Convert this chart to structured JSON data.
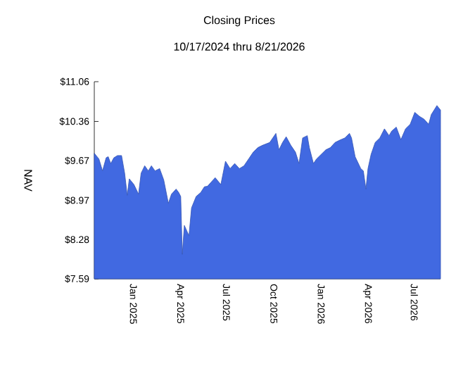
{
  "chart_data": {
    "type": "area",
    "title": "Closing Prices",
    "subtitle": "10/17/2024 thru 8/21/2026",
    "ylabel": "NAV",
    "x": [
      "2024-10-17",
      "2024-10-26",
      "2024-11-02",
      "2024-11-09",
      "2024-11-13",
      "2024-11-18",
      "2024-11-24",
      "2024-12-01",
      "2024-12-09",
      "2024-12-15",
      "2024-12-20",
      "2024-12-24",
      "2025-01-02",
      "2025-01-11",
      "2025-01-16",
      "2025-01-23",
      "2025-01-30",
      "2025-02-05",
      "2025-02-12",
      "2025-02-21",
      "2025-03-01",
      "2025-03-10",
      "2025-03-16",
      "2025-03-25",
      "2025-03-30",
      "2025-04-03",
      "2025-04-06",
      "2025-04-10",
      "2025-04-15",
      "2025-04-19",
      "2025-04-24",
      "2025-05-03",
      "2025-05-12",
      "2025-05-19",
      "2025-05-25",
      "2025-06-01",
      "2025-06-09",
      "2025-06-20",
      "2025-06-29",
      "2025-07-08",
      "2025-07-17",
      "2025-07-26",
      "2025-08-04",
      "2025-08-13",
      "2025-08-22",
      "2025-08-31",
      "2025-09-09",
      "2025-09-23",
      "2025-10-05",
      "2025-10-11",
      "2025-10-18",
      "2025-10-25",
      "2025-11-03",
      "2025-11-12",
      "2025-11-19",
      "2025-11-26",
      "2025-12-05",
      "2025-12-09",
      "2025-12-17",
      "2025-12-23",
      "2026-01-01",
      "2026-01-10",
      "2026-01-19",
      "2026-01-28",
      "2026-02-06",
      "2026-02-16",
      "2026-02-25",
      "2026-03-01",
      "2026-03-08",
      "2026-03-19",
      "2026-03-24",
      "2026-03-29",
      "2026-04-02",
      "2026-04-08",
      "2026-04-16",
      "2026-04-25",
      "2026-05-04",
      "2026-05-13",
      "2026-05-18",
      "2026-05-27",
      "2026-06-05",
      "2026-06-14",
      "2026-06-23",
      "2026-07-02",
      "2026-07-11",
      "2026-07-20",
      "2026-07-29",
      "2026-08-03",
      "2026-08-14",
      "2026-08-21"
    ],
    "series": [
      {
        "color": "#4169e1",
        "values": [
          9.8,
          9.7,
          9.49,
          9.72,
          9.74,
          9.62,
          9.72,
          9.76,
          9.76,
          9.45,
          9.06,
          9.35,
          9.25,
          9.08,
          9.45,
          9.58,
          9.49,
          9.58,
          9.49,
          9.53,
          9.33,
          8.92,
          9.08,
          9.17,
          9.11,
          9.04,
          8.02,
          8.53,
          8.43,
          8.35,
          8.84,
          9.04,
          9.11,
          9.21,
          9.22,
          9.29,
          9.37,
          9.25,
          9.66,
          9.53,
          9.62,
          9.53,
          9.58,
          9.7,
          9.82,
          9.9,
          9.94,
          9.99,
          10.15,
          9.86,
          9.99,
          10.09,
          9.94,
          9.82,
          9.62,
          10.07,
          10.11,
          9.9,
          9.62,
          9.7,
          9.78,
          9.86,
          9.9,
          9.99,
          10.03,
          10.07,
          10.15,
          10.07,
          9.74,
          9.53,
          9.49,
          9.17,
          9.53,
          9.78,
          9.99,
          10.07,
          10.23,
          10.11,
          10.19,
          10.26,
          10.04,
          10.23,
          10.31,
          10.52,
          10.45,
          10.4,
          10.31,
          10.48,
          10.64,
          10.56
        ]
      }
    ],
    "xlim": [
      "2024-10-17",
      "2026-08-21"
    ],
    "xticks": [
      {
        "value": "2025-01-01",
        "label": "Jan 2025"
      },
      {
        "value": "2025-04-01",
        "label": "Apr 2025"
      },
      {
        "value": "2025-07-01",
        "label": "Jul 2025"
      },
      {
        "value": "2025-10-01",
        "label": "Oct 2025"
      },
      {
        "value": "2026-01-01",
        "label": "Jan 2026"
      },
      {
        "value": "2026-04-01",
        "label": "Apr 2026"
      },
      {
        "value": "2026-07-01",
        "label": "Jul 2026"
      }
    ],
    "ylim": [
      7.59,
      11.06
    ],
    "yticks": [
      {
        "value": 7.59,
        "label": "$7.59"
      },
      {
        "value": 8.28,
        "label": "$8.28"
      },
      {
        "value": 8.97,
        "label": "$8.97"
      },
      {
        "value": 9.67,
        "label": "$9.67"
      },
      {
        "value": 10.36,
        "label": "$10.36"
      },
      {
        "value": 11.06,
        "label": "$11.06"
      }
    ],
    "marker": "none"
  }
}
